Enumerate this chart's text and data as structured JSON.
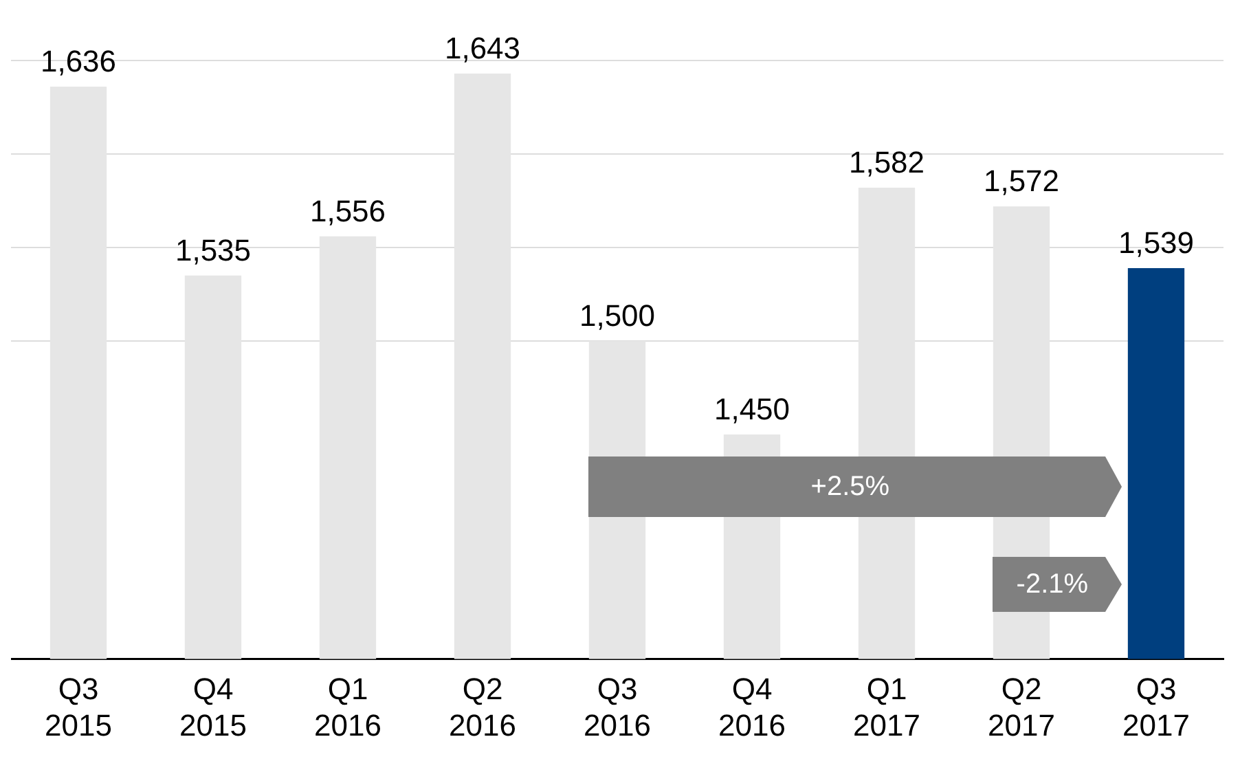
{
  "chart_data": {
    "type": "bar",
    "categories": [
      "Q3 2015",
      "Q4 2015",
      "Q1 2016",
      "Q2 2016",
      "Q3 2016",
      "Q4 2016",
      "Q1 2017",
      "Q2 2017",
      "Q3 2017"
    ],
    "values": [
      1636,
      1535,
      1556,
      1643,
      1500,
      1450,
      1582,
      1572,
      1539
    ],
    "colors": [
      "#e6e6e6",
      "#e6e6e6",
      "#e6e6e6",
      "#e6e6e6",
      "#e6e6e6",
      "#e6e6e6",
      "#e6e6e6",
      "#e6e6e6",
      "#003f7f"
    ],
    "value_labels": [
      "1,636",
      "1,535",
      "1,556",
      "1,643",
      "1,500",
      "1,450",
      "1,582",
      "1,572",
      "1,539"
    ],
    "ylim": [
      1330,
      1650
    ],
    "yticks": [
      {
        "value": 1500,
        "label": null
      },
      {
        "value": 1550,
        "label": null
      },
      {
        "value": 1600,
        "label": null
      },
      {
        "value": 1650,
        "label": null
      }
    ],
    "grid": "y",
    "tick_labels": "x",
    "annotations": [
      "+2.5%",
      "-2.1%"
    ]
  }
}
